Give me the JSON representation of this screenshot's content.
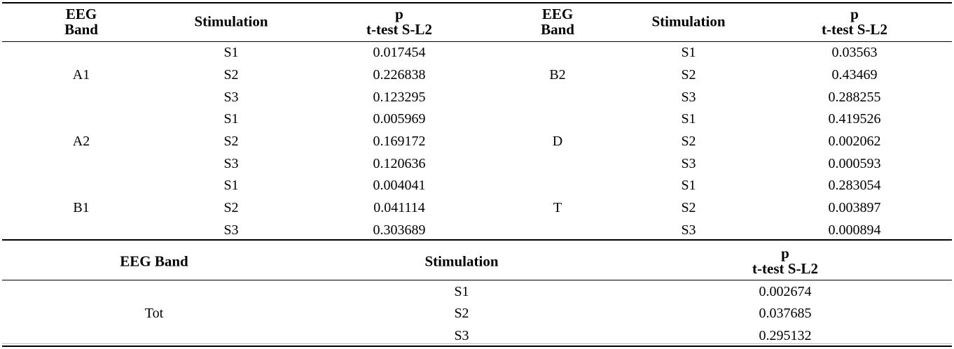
{
  "top_table": {
    "left": {
      "header": {
        "band_line1": "EEG",
        "band_line2": "Band",
        "stimulation": "Stimulation",
        "p_line1": "p",
        "p_line2": "t-test S-L2"
      },
      "groups": [
        {
          "band": "A1",
          "rows": [
            {
              "stim": "S1",
              "p": "0.017454"
            },
            {
              "stim": "S2",
              "p": "0.226838"
            },
            {
              "stim": "S3",
              "p": "0.123295"
            }
          ]
        },
        {
          "band": "A2",
          "rows": [
            {
              "stim": "S1",
              "p": "0.005969"
            },
            {
              "stim": "S2",
              "p": "0.169172"
            },
            {
              "stim": "S3",
              "p": "0.120636"
            }
          ]
        },
        {
          "band": "B1",
          "rows": [
            {
              "stim": "S1",
              "p": "0.004041"
            },
            {
              "stim": "S2",
              "p": "0.041114"
            },
            {
              "stim": "S3",
              "p": "0.303689"
            }
          ]
        }
      ]
    },
    "right": {
      "header": {
        "band_line1": "EEG",
        "band_line2": "Band",
        "stimulation": "Stimulation",
        "p_line1": "p",
        "p_line2": "t-test S-L2"
      },
      "groups": [
        {
          "band": "B2",
          "rows": [
            {
              "stim": "S1",
              "p": "0.03563"
            },
            {
              "stim": "S2",
              "p": "0.43469"
            },
            {
              "stim": "S3",
              "p": "0.288255"
            }
          ]
        },
        {
          "band": "D",
          "rows": [
            {
              "stim": "S1",
              "p": "0.419526"
            },
            {
              "stim": "S2",
              "p": "0.002062"
            },
            {
              "stim": "S3",
              "p": "0.000593"
            }
          ]
        },
        {
          "band": "T",
          "rows": [
            {
              "stim": "S1",
              "p": "0.283054"
            },
            {
              "stim": "S2",
              "p": "0.003897"
            },
            {
              "stim": "S3",
              "p": "0.000894"
            }
          ]
        }
      ]
    }
  },
  "bottom_table": {
    "header": {
      "band": "EEG Band",
      "stimulation": "Stimulation",
      "p_line1": "p",
      "p_line2": "t-test S-L2"
    },
    "group": {
      "band": "Tot",
      "rows": [
        {
          "stim": "S1",
          "p": "0.002674"
        },
        {
          "stim": "S2",
          "p": "0.037685"
        },
        {
          "stim": "S3",
          "p": "0.295132"
        }
      ]
    }
  }
}
